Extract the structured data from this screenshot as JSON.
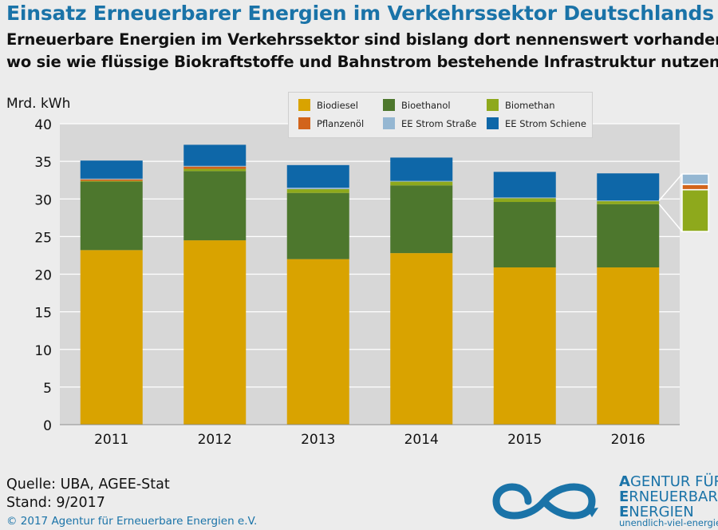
{
  "title": "Einsatz Erneuerbarer Energien im Verkehrssektor Deutschlands",
  "subtitle_line1": "Erneuerbare Energien im Verkehrssektor sind bislang dort nennenswert vorhanden,",
  "subtitle_line2": "wo sie wie flüssige Biokraftstoffe und Bahnstrom bestehende Infrastruktur nutzen.",
  "source": "Quelle: UBA, AGEE-Stat",
  "status": "Stand: 9/2017",
  "copyright": "© 2017 Agentur für Erneuerbare Energien e.V.",
  "logo": {
    "line1_cap": "A",
    "line1_rest": "GENTUR FÜR",
    "line2_cap": "E",
    "line2_rest": "RNEUERBARE",
    "line3_cap": "E",
    "line3_rest": "NERGIEN",
    "url": "unendlich-viel-energie.de"
  },
  "colors": {
    "biodiesel": "#d9a300",
    "bioethanol": "#4d772d",
    "biomethan": "#8ea91c",
    "pflanzenoel": "#d2641b",
    "ee_strasse": "#95b7d2",
    "ee_schiene": "#0e67a8"
  },
  "chart_data": {
    "type": "bar",
    "stacked": true,
    "ylabel": "Mrd. kWh",
    "ylim": [
      0,
      40
    ],
    "yticks": [
      0,
      5,
      10,
      15,
      20,
      25,
      30,
      35,
      40
    ],
    "grid": true,
    "legend_position": "top-right",
    "categories": [
      "2011",
      "2012",
      "2013",
      "2014",
      "2015",
      "2016"
    ],
    "series": [
      {
        "name": "Biodiesel",
        "color": "#d9a300",
        "values": [
          23.2,
          24.5,
          22.0,
          22.8,
          20.9,
          20.9
        ]
      },
      {
        "name": "Bioethanol",
        "color": "#4d772d",
        "values": [
          9.1,
          9.2,
          8.8,
          9.0,
          8.7,
          8.4
        ]
      },
      {
        "name": "Biomethan",
        "color": "#8ea91c",
        "values": [
          0.1,
          0.3,
          0.5,
          0.5,
          0.5,
          0.4
        ]
      },
      {
        "name": "Pflanzenöl",
        "color": "#d2641b",
        "values": [
          0.2,
          0.3,
          0.0,
          0.0,
          0.0,
          0.0
        ]
      },
      {
        "name": "EE Strom Straße",
        "color": "#95b7d2",
        "values": [
          0.1,
          0.1,
          0.2,
          0.1,
          0.1,
          0.1
        ]
      },
      {
        "name": "EE Strom Schiene",
        "color": "#0e67a8",
        "values": [
          2.4,
          2.8,
          3.0,
          3.1,
          3.4,
          3.6
        ]
      }
    ],
    "zoom_inset": {
      "category": "2016",
      "series_shown": [
        "Biomethan",
        "Pflanzenöl",
        "EE Strom Straße"
      ]
    }
  }
}
